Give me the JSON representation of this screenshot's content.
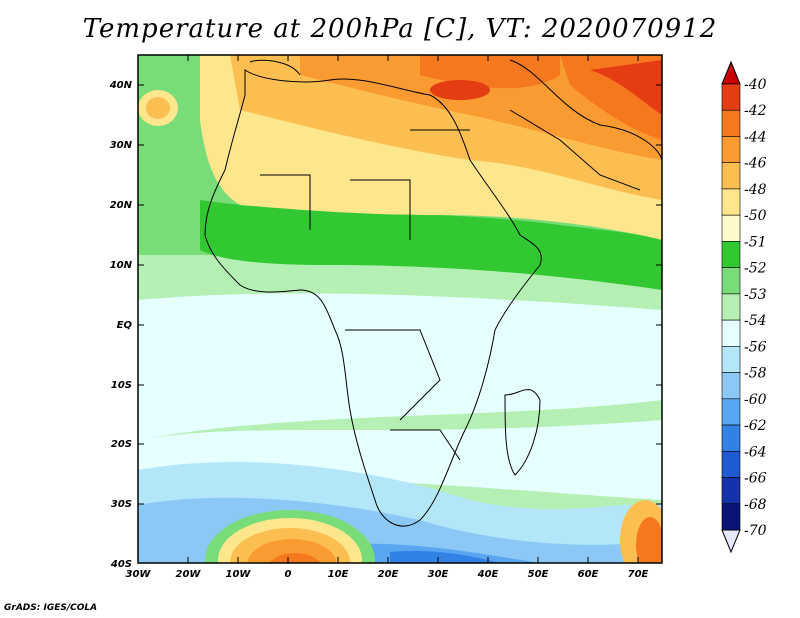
{
  "title": "Temperature at 200hPa [C], VT: 2020070912",
  "credit": "GrADS: IGES/COLA",
  "lat_labels": [
    "40N",
    "30N",
    "20N",
    "10N",
    "EQ",
    "10S",
    "20S",
    "30S",
    "40S"
  ],
  "lon_labels": [
    "30W",
    "20W",
    "10W",
    "0",
    "10E",
    "20E",
    "30E",
    "40E",
    "50E",
    "60E",
    "70E"
  ],
  "colorbar": {
    "levels": [
      {
        "label": "-40",
        "color": "#c80000"
      },
      {
        "label": "-42",
        "color": "#e63c14"
      },
      {
        "label": "-44",
        "color": "#f5781e"
      },
      {
        "label": "-46",
        "color": "#fa9b32"
      },
      {
        "label": "-48",
        "color": "#fcbe50"
      },
      {
        "label": "-50",
        "color": "#fde68c"
      },
      {
        "label": "-51",
        "color": "#fffaca"
      },
      {
        "label": "-52",
        "color": "#32c832"
      },
      {
        "label": "-53",
        "color": "#78dc78"
      },
      {
        "label": "-54",
        "color": "#b4f0b4"
      },
      {
        "label": "-56",
        "color": "#e6ffff"
      },
      {
        "label": "-58",
        "color": "#b4e6fa"
      },
      {
        "label": "-60",
        "color": "#8cc8f5"
      },
      {
        "label": "-62",
        "color": "#5aa5f0"
      },
      {
        "label": "-64",
        "color": "#3282e6"
      },
      {
        "label": "-66",
        "color": "#1e5ad2"
      },
      {
        "label": "-68",
        "color": "#1432aa"
      },
      {
        "label": "-70",
        "color": "#0a1478"
      }
    ],
    "top_color": "#c80000",
    "bottom_color": "#e6e6ff"
  }
}
